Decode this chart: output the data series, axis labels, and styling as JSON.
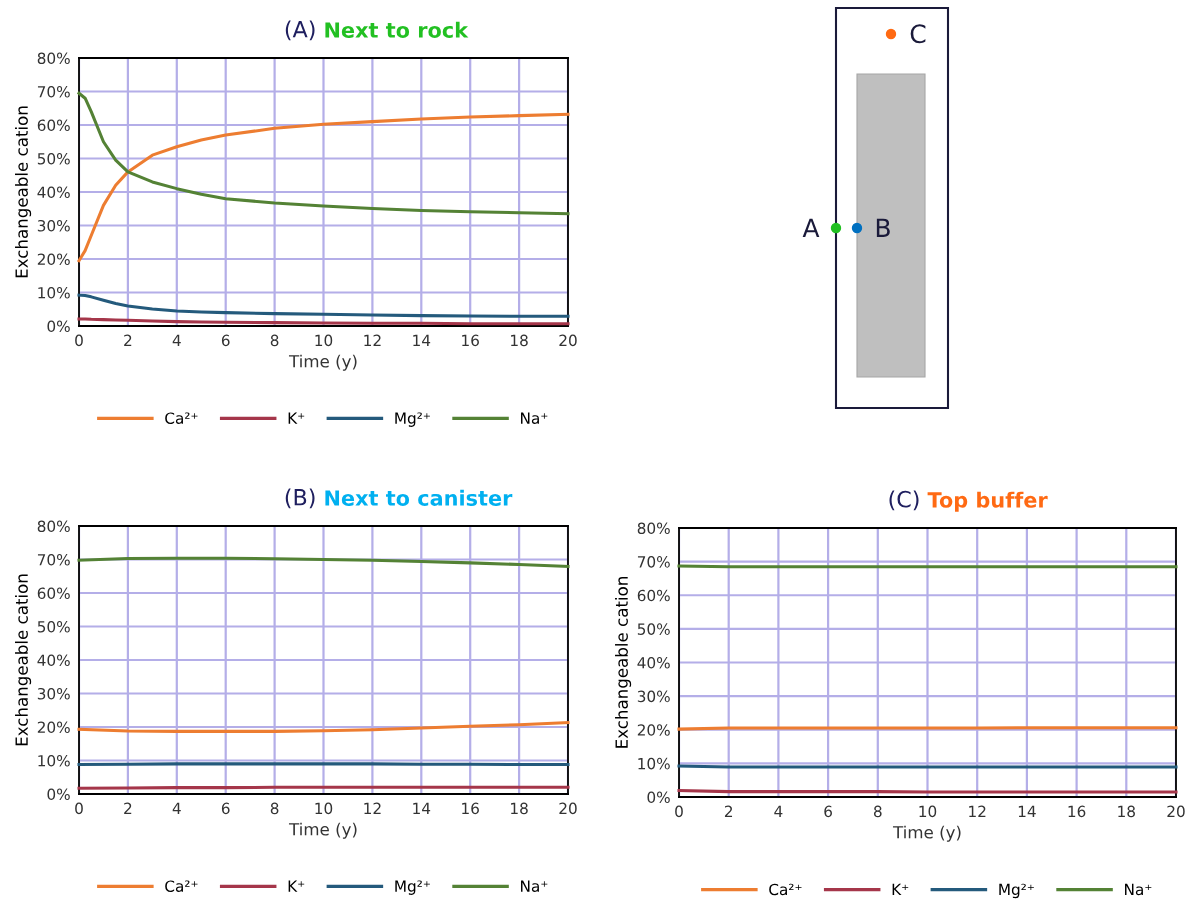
{
  "chart_data": [
    {
      "type": "line",
      "title": "(A) Next to rock",
      "xlabel": "Time (y)",
      "ylabel": "Exchangeable cation",
      "x": [
        0,
        0.25,
        0.5,
        1,
        1.5,
        2,
        3,
        4,
        5,
        6,
        8,
        10,
        12,
        14,
        16,
        18,
        20
      ],
      "series": [
        {
          "name": "Ca²⁺",
          "color": "#ed7d31",
          "values": [
            19.5,
            22.5,
            27,
            36,
            42,
            46,
            51,
            53.5,
            55.5,
            57,
            59,
            60.2,
            61,
            61.8,
            62.4,
            62.8,
            63.2
          ]
        },
        {
          "name": "K⁺",
          "color": "#a5364a",
          "values": [
            2.1,
            2.1,
            2.0,
            1.9,
            1.8,
            1.7,
            1.5,
            1.3,
            1.2,
            1.1,
            1.0,
            0.9,
            0.8,
            0.8,
            0.7,
            0.7,
            0.7
          ]
        },
        {
          "name": "Mg²⁺",
          "color": "#245a7c",
          "values": [
            9.2,
            9.1,
            8.7,
            7.7,
            6.7,
            6.0,
            5.1,
            4.5,
            4.2,
            4.0,
            3.7,
            3.5,
            3.3,
            3.1,
            3.0,
            2.9,
            2.9
          ]
        },
        {
          "name": "Na⁺",
          "color": "#548235",
          "values": [
            69.5,
            68,
            64,
            55,
            49.5,
            46,
            43,
            41,
            39.3,
            38,
            36.7,
            35.8,
            35.1,
            34.5,
            34.1,
            33.8,
            33.5
          ]
        }
      ],
      "xlim": [
        0,
        20
      ],
      "xticks": [
        0,
        2,
        4,
        6,
        8,
        10,
        12,
        14,
        16,
        18,
        20
      ],
      "ylim": [
        0,
        80
      ],
      "yticks": [
        {
          "value": 0,
          "label": "0%"
        },
        {
          "value": 10,
          "label": "10%"
        },
        {
          "value": 20,
          "label": "20%"
        },
        {
          "value": 30,
          "label": "30%"
        },
        {
          "value": 40,
          "label": "40%"
        },
        {
          "value": 50,
          "label": "50%"
        },
        {
          "value": 60,
          "label": "60%"
        },
        {
          "value": 70,
          "label": "70%"
        },
        {
          "value": 80,
          "label": "80%"
        }
      ],
      "grid": true,
      "legend": "bottom",
      "marker": "none",
      "line_style": "solid"
    },
    {
      "type": "other",
      "annotations": [
        "A",
        "B",
        "C"
      ]
    },
    {
      "type": "line",
      "title": "(B) Next to canister",
      "xlabel": "Time (y)",
      "ylabel": "Exchangeable cation",
      "x": [
        0,
        2,
        4,
        6,
        8,
        10,
        12,
        14,
        16,
        18,
        20
      ],
      "series": [
        {
          "name": "Ca²⁺",
          "color": "#ed7d31",
          "values": [
            19.3,
            18.8,
            18.7,
            18.7,
            18.7,
            18.9,
            19.2,
            19.7,
            20.2,
            20.7,
            21.3
          ]
        },
        {
          "name": "K⁺",
          "color": "#a5364a",
          "values": [
            1.7,
            1.8,
            1.9,
            1.9,
            2.0,
            2.0,
            2.0,
            2.0,
            2.0,
            2.0,
            2.0
          ]
        },
        {
          "name": "Mg²⁺",
          "color": "#245a7c",
          "values": [
            8.8,
            8.9,
            9.0,
            9.0,
            9.0,
            9.0,
            9.0,
            8.9,
            8.9,
            8.8,
            8.8
          ]
        },
        {
          "name": "Na⁺",
          "color": "#548235",
          "values": [
            69.8,
            70.3,
            70.4,
            70.4,
            70.2,
            70.0,
            69.8,
            69.4,
            69.0,
            68.5,
            67.9
          ]
        }
      ],
      "xlim": [
        0,
        20
      ],
      "xticks": [
        0,
        2,
        4,
        6,
        8,
        10,
        12,
        14,
        16,
        18,
        20
      ],
      "ylim": [
        0,
        80
      ],
      "yticks": [
        {
          "value": 0,
          "label": "0%"
        },
        {
          "value": 10,
          "label": "10%"
        },
        {
          "value": 20,
          "label": "20%"
        },
        {
          "value": 30,
          "label": "30%"
        },
        {
          "value": 40,
          "label": "40%"
        },
        {
          "value": 50,
          "label": "50%"
        },
        {
          "value": 60,
          "label": "60%"
        },
        {
          "value": 70,
          "label": "70%"
        },
        {
          "value": 80,
          "label": "80%"
        }
      ],
      "grid": true,
      "legend": "bottom",
      "marker": "none",
      "line_style": "solid"
    },
    {
      "type": "line",
      "title": "(C) Top buffer",
      "xlabel": "Time (y)",
      "ylabel": "Exchangeable cation",
      "x": [
        0,
        2,
        4,
        6,
        8,
        10,
        12,
        14,
        16,
        18,
        20
      ],
      "series": [
        {
          "name": "Ca²⁺",
          "color": "#ed7d31",
          "values": [
            20.2,
            20.5,
            20.5,
            20.5,
            20.5,
            20.5,
            20.5,
            20.6,
            20.6,
            20.6,
            20.6
          ]
        },
        {
          "name": "K⁺",
          "color": "#a5364a",
          "values": [
            1.9,
            1.6,
            1.6,
            1.6,
            1.6,
            1.5,
            1.5,
            1.5,
            1.5,
            1.5,
            1.5
          ]
        },
        {
          "name": "Mg²⁺",
          "color": "#245a7c",
          "values": [
            9.2,
            8.9,
            8.9,
            8.9,
            8.9,
            8.9,
            8.9,
            8.9,
            8.9,
            8.9,
            8.9
          ]
        },
        {
          "name": "Na⁺",
          "color": "#548235",
          "values": [
            68.7,
            68.5,
            68.5,
            68.5,
            68.5,
            68.5,
            68.5,
            68.5,
            68.5,
            68.5,
            68.5
          ]
        }
      ],
      "xlim": [
        0,
        20
      ],
      "xticks": [
        0,
        2,
        4,
        6,
        8,
        10,
        12,
        14,
        16,
        18,
        20
      ],
      "ylim": [
        0,
        80
      ],
      "yticks": [
        {
          "value": 0,
          "label": "0%"
        },
        {
          "value": 10,
          "label": "10%"
        },
        {
          "value": 20,
          "label": "20%"
        },
        {
          "value": 30,
          "label": "30%"
        },
        {
          "value": 40,
          "label": "40%"
        },
        {
          "value": 50,
          "label": "50%"
        },
        {
          "value": 60,
          "label": "60%"
        },
        {
          "value": 70,
          "label": "70%"
        },
        {
          "value": 80,
          "label": "80%"
        }
      ],
      "grid": true,
      "legend": "bottom",
      "marker": "none",
      "line_style": "solid"
    }
  ]
}
